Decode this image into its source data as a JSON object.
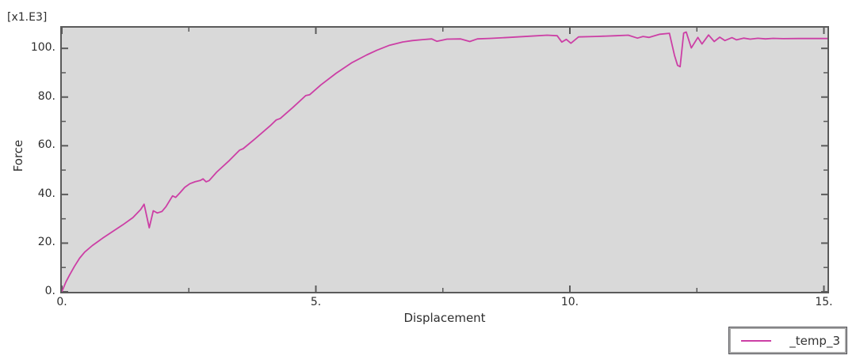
{
  "colors": {
    "figure_background": "#ffffff",
    "plot_background": "#d9d9d9",
    "axis_border": "#5a5a5a",
    "tick": "#5a5a5a",
    "text": "#2e2e2e",
    "curve": "#cc3fa5"
  },
  "chart_data": {
    "type": "line",
    "title": "",
    "xlabel": "Displacement",
    "ylabel": "Force",
    "y_scale_label": "[x1.E3]",
    "xlim": [
      0,
      15.07
    ],
    "ylim": [
      0,
      108.5
    ],
    "x_major_ticks": [
      0,
      5,
      10,
      15
    ],
    "x_major_tick_labels": [
      "0.",
      "5.",
      "10.",
      "15."
    ],
    "x_minor_ticks": [
      2.5,
      7.5,
      12.5
    ],
    "y_major_ticks": [
      0,
      20,
      40,
      60,
      80,
      100
    ],
    "y_major_tick_labels": [
      "0.",
      "20.",
      "40.",
      "60.",
      "80.",
      "100."
    ],
    "y_minor_ticks": [
      10,
      30,
      50,
      70,
      90
    ],
    "grid": false,
    "ticks": "inward, mirrored on all four sides",
    "legend_position": "outside bottom-right",
    "note": "Force values are in units of 1E3 per the [x1.E3] scale label",
    "series": [
      {
        "name": "_temp_3",
        "color": "#cc3fa5",
        "points": [
          [
            0,
            0
          ],
          [
            0.08,
            4
          ],
          [
            0.15,
            6.8
          ],
          [
            0.25,
            10.5
          ],
          [
            0.35,
            13.8
          ],
          [
            0.45,
            16.3
          ],
          [
            0.6,
            19
          ],
          [
            0.8,
            22
          ],
          [
            1.0,
            24.8
          ],
          [
            1.2,
            27.5
          ],
          [
            1.4,
            30.5
          ],
          [
            1.55,
            33.8
          ],
          [
            1.62,
            36
          ],
          [
            1.72,
            26.3
          ],
          [
            1.8,
            33.3
          ],
          [
            1.88,
            32.4
          ],
          [
            1.97,
            33
          ],
          [
            2.05,
            35
          ],
          [
            2.18,
            39.4
          ],
          [
            2.24,
            38.8
          ],
          [
            2.33,
            40.8
          ],
          [
            2.42,
            42.9
          ],
          [
            2.52,
            44.4
          ],
          [
            2.62,
            45.2
          ],
          [
            2.72,
            45.7
          ],
          [
            2.78,
            46.4
          ],
          [
            2.84,
            45.2
          ],
          [
            2.9,
            45.7
          ],
          [
            3.05,
            49.2
          ],
          [
            3.3,
            54
          ],
          [
            3.5,
            58.2
          ],
          [
            3.57,
            58.8
          ],
          [
            3.8,
            62.8
          ],
          [
            4.1,
            68.2
          ],
          [
            4.22,
            70.6
          ],
          [
            4.3,
            71.2
          ],
          [
            4.55,
            75.8
          ],
          [
            4.8,
            80.6
          ],
          [
            4.88,
            81
          ],
          [
            5.1,
            85
          ],
          [
            5.4,
            89.8
          ],
          [
            5.7,
            94
          ],
          [
            6.0,
            97.3
          ],
          [
            6.2,
            99.2
          ],
          [
            6.45,
            101.3
          ],
          [
            6.7,
            102.6
          ],
          [
            6.9,
            103.2
          ],
          [
            7.1,
            103.6
          ],
          [
            7.28,
            103.9
          ],
          [
            7.38,
            102.9
          ],
          [
            7.58,
            103.8
          ],
          [
            7.85,
            103.9
          ],
          [
            8.03,
            102.8
          ],
          [
            8.18,
            103.9
          ],
          [
            8.45,
            104.1
          ],
          [
            8.8,
            104.5
          ],
          [
            9.2,
            105
          ],
          [
            9.55,
            105.4
          ],
          [
            9.75,
            105.2
          ],
          [
            9.84,
            102.6
          ],
          [
            9.93,
            103.7
          ],
          [
            10.02,
            102.1
          ],
          [
            10.17,
            104.7
          ],
          [
            10.5,
            104.9
          ],
          [
            10.9,
            105.2
          ],
          [
            11.15,
            105.4
          ],
          [
            11.33,
            104.2
          ],
          [
            11.44,
            104.9
          ],
          [
            11.56,
            104.5
          ],
          [
            11.77,
            105.8
          ],
          [
            11.96,
            106.2
          ],
          [
            12.06,
            97
          ],
          [
            12.12,
            93
          ],
          [
            12.17,
            92.5
          ],
          [
            12.24,
            106.3
          ],
          [
            12.29,
            106.7
          ],
          [
            12.39,
            100.2
          ],
          [
            12.52,
            104.5
          ],
          [
            12.6,
            101.8
          ],
          [
            12.73,
            105.5
          ],
          [
            12.84,
            102.8
          ],
          [
            12.95,
            104.6
          ],
          [
            13.05,
            103.2
          ],
          [
            13.19,
            104.4
          ],
          [
            13.28,
            103.5
          ],
          [
            13.42,
            104.2
          ],
          [
            13.55,
            103.8
          ],
          [
            13.7,
            104.15
          ],
          [
            13.85,
            103.9
          ],
          [
            14.0,
            104.1
          ],
          [
            14.2,
            104.0
          ],
          [
            14.5,
            104.05
          ],
          [
            15.07,
            104.05
          ]
        ]
      }
    ]
  }
}
